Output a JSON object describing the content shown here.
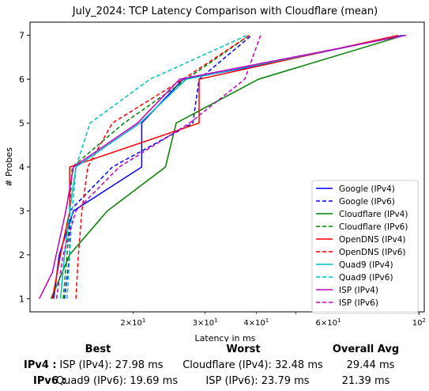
{
  "chart_data": {
    "type": "line",
    "title": "July_2024: TCP Latency Comparison with Cloudflare (mean)",
    "xlabel": "Latency in ms",
    "ylabel": "# Probes",
    "xscale": "log",
    "xlim": [
      11.2,
      103
    ],
    "ylim": [
      0.7,
      7.3
    ],
    "yticks": [
      1,
      2,
      3,
      4,
      5,
      6,
      7
    ],
    "xticks_major": [
      {
        "value": 100,
        "label": "10^2"
      }
    ],
    "xticks_minor": [
      {
        "value": 20,
        "label": "2×10^1"
      },
      {
        "value": 30,
        "label": "3×10^1"
      },
      {
        "value": 40,
        "label": "4×10^1"
      },
      {
        "value": 60,
        "label": "6×10^1"
      }
    ],
    "grid": false,
    "legend_position": "lower right",
    "series": [
      {
        "name": "Google (IPv4)",
        "color": "#0000ff",
        "dash": "solid",
        "x": [
          12.8,
          13.2,
          14.3,
          21.0,
          21.0,
          26.5,
          40.0,
          91.0
        ],
        "y": [
          1,
          2,
          3,
          4,
          5,
          6,
          6.3,
          7
        ]
      },
      {
        "name": "Google (IPv6)",
        "color": "#0000ff",
        "dash": "dashed",
        "x": [
          13.6,
          14.0,
          14.0,
          17.8,
          28.0,
          29.0,
          39.0
        ],
        "y": [
          1,
          2,
          3,
          4,
          5,
          6,
          7
        ]
      },
      {
        "name": "Cloudflare (IPv4)",
        "color": "#008000",
        "dash": "solid",
        "x": [
          12.6,
          14.0,
          17.3,
          24.0,
          25.5,
          40.5,
          92.0
        ],
        "y": [
          1,
          2,
          3,
          4,
          5,
          6,
          7
        ]
      },
      {
        "name": "Cloudflare (IPv6)",
        "color": "#008000",
        "dash": "dashed",
        "x": [
          13.5,
          13.8,
          14.0,
          14.2,
          19.0,
          27.0,
          38.5
        ],
        "y": [
          1,
          2,
          3,
          4,
          5,
          6,
          7
        ]
      },
      {
        "name": "OpenDNS (IPv4)",
        "color": "#ff0000",
        "dash": "solid",
        "x": [
          12.7,
          13.3,
          14.0,
          14.0,
          29.0,
          29.0,
          89.0
        ],
        "y": [
          1,
          2,
          3,
          4,
          5,
          6,
          7
        ]
      },
      {
        "name": "OpenDNS (IPv6)",
        "color": "#ff0000",
        "dash": "dashed",
        "x": [
          14.5,
          14.7,
          15.0,
          15.5,
          17.8,
          26.5,
          38.5
        ],
        "y": [
          1,
          2,
          3,
          4,
          5,
          6,
          7
        ]
      },
      {
        "name": "Quad9 (IPv4)",
        "color": "#00bfbf",
        "dash": "solid",
        "x": [
          13.3,
          13.6,
          14.0,
          14.5,
          20.8,
          27.0,
          92.0
        ],
        "y": [
          1,
          2,
          3,
          4,
          5,
          6,
          7
        ]
      },
      {
        "name": "Quad9 (IPv6)",
        "color": "#00bfbf",
        "dash": "dashed",
        "x": [
          13.8,
          14.0,
          14.2,
          14.5,
          15.7,
          22.0,
          38.0
        ],
        "y": [
          1,
          2,
          3,
          4,
          5,
          6,
          7
        ]
      },
      {
        "name": "ISP (IPv4)",
        "color": "#bf00bf",
        "dash": "solid",
        "x": [
          11.8,
          12.7,
          13.7,
          14.3,
          20.5,
          26.0,
          93.0
        ],
        "y": [
          1,
          1.6,
          3,
          4,
          5,
          6,
          7
        ]
      },
      {
        "name": "ISP (IPv6)",
        "color": "#bf00bf",
        "dash": "dashed",
        "x": [
          13.0,
          13.5,
          14.5,
          18.5,
          27.5,
          37.5,
          41.0
        ],
        "y": [
          1,
          2,
          3,
          4,
          5,
          6,
          7
        ]
      }
    ]
  },
  "summary": {
    "headers": {
      "best": "Best",
      "worst": "Worst",
      "avg": "Overall Avg"
    },
    "rows": [
      {
        "label": "IPv4 :",
        "best": "ISP (IPv4): 27.98 ms",
        "worst": "Cloudflare (IPv4): 32.48 ms",
        "avg": "29.44 ms"
      },
      {
        "label": "IPv6 :",
        "best": "Quad9 (IPv6): 19.69 ms",
        "worst": "ISP (IPv6): 23.79 ms",
        "avg": "21.39 ms"
      }
    ]
  }
}
